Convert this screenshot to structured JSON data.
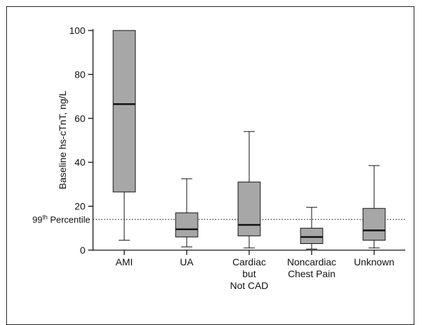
{
  "chart_data": {
    "type": "boxplot",
    "ylabel": "Baseline hs-cTnT, ng/L",
    "ylim": [
      0,
      100
    ],
    "yticks": [
      0,
      20,
      40,
      60,
      80,
      100
    ],
    "categories": [
      {
        "lines": [
          "AMI"
        ]
      },
      {
        "lines": [
          "UA"
        ]
      },
      {
        "lines": [
          "Cardiac",
          "but",
          "Not CAD"
        ]
      },
      {
        "lines": [
          "Noncardiac",
          "Chest Pain"
        ]
      },
      {
        "lines": [
          "Unknown"
        ]
      }
    ],
    "boxes": [
      {
        "whisker_low": 4.5,
        "q1": 26.5,
        "median": 66.5,
        "q3": 100,
        "whisker_high": 100
      },
      {
        "whisker_low": 1.5,
        "q1": 6,
        "median": 9.5,
        "q3": 17,
        "whisker_high": 32.5
      },
      {
        "whisker_low": 1,
        "q1": 6.5,
        "median": 11.5,
        "q3": 31,
        "whisker_high": 54
      },
      {
        "whisker_low": 0.5,
        "q1": 3,
        "median": 6,
        "q3": 10,
        "whisker_high": 19.5
      },
      {
        "whisker_low": 1,
        "q1": 4.5,
        "median": 9,
        "q3": 19,
        "whisker_high": 38.5
      }
    ],
    "reference_line": {
      "value": 14,
      "label_base": "99",
      "label_sup": "th",
      "label_rest": " Percentile",
      "style": "dotted"
    },
    "box_color": "#a7a7a7",
    "grid": false
  }
}
